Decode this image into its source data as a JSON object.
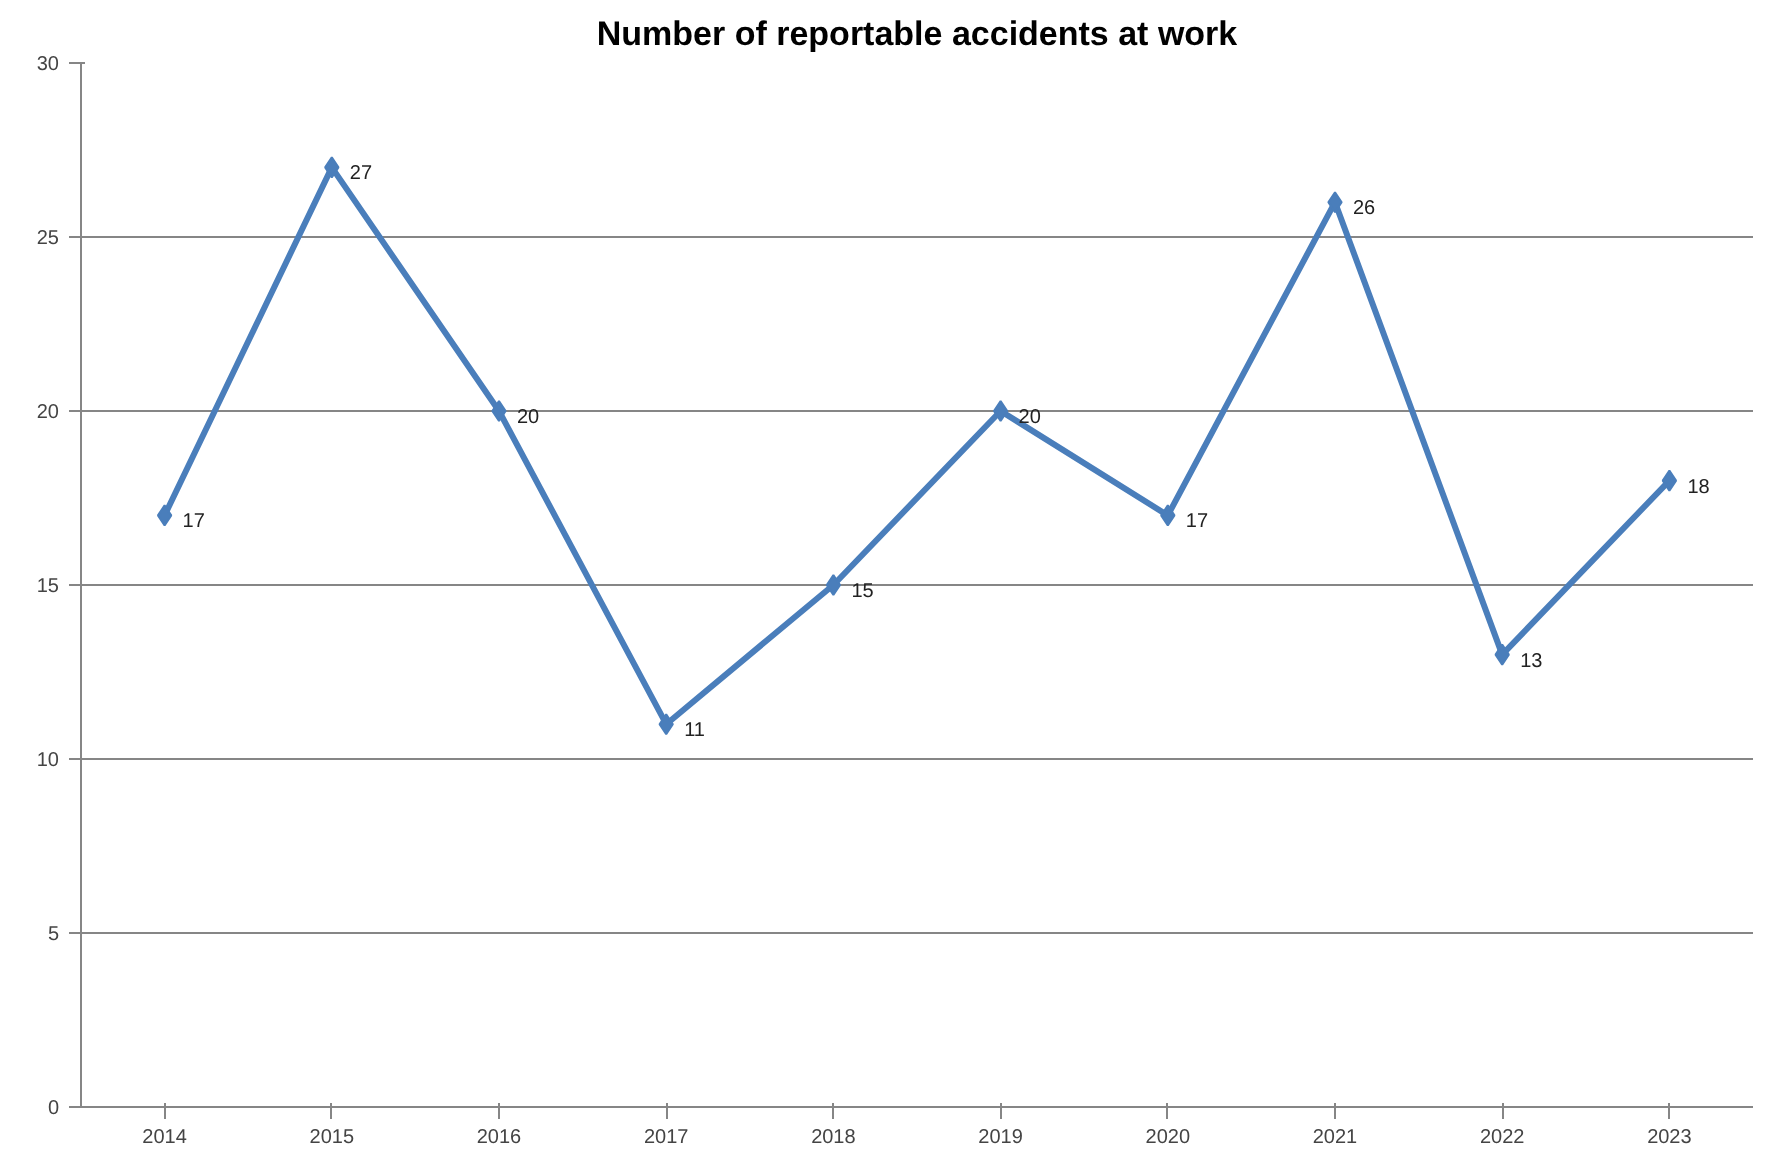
{
  "chart_data": {
    "type": "line",
    "title": "Number of reportable accidents at work",
    "categories": [
      "2014",
      "2015",
      "2016",
      "2017",
      "2018",
      "2019",
      "2020",
      "2021",
      "2022",
      "2023"
    ],
    "series": [
      {
        "color": "#4a7ebb",
        "values": [
          17,
          27,
          20,
          11,
          15,
          20,
          17,
          26,
          13,
          18
        ]
      }
    ],
    "ylim": [
      0,
      30
    ],
    "yticks": [
      0,
      5,
      10,
      15,
      20,
      25,
      30
    ],
    "grid": "y",
    "marker": "diamond",
    "line_style": "solid",
    "data_labels": true
  }
}
